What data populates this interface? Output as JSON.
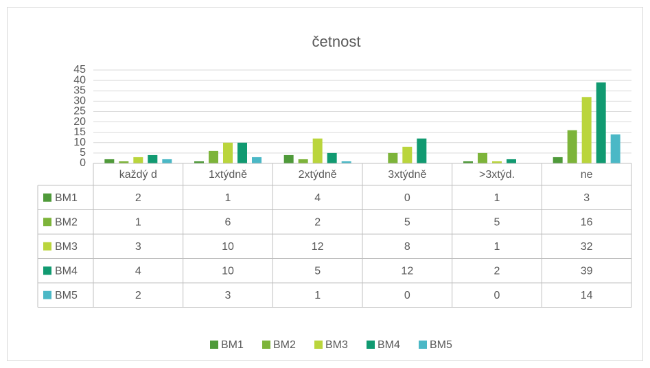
{
  "chart_data": {
    "type": "bar",
    "title": "četnost",
    "categories": [
      "každý d",
      "1xtýdně",
      "2xtýdně",
      "3xtýdně",
      ">3xtýd.",
      "ne"
    ],
    "series": [
      {
        "name": "BM1",
        "color": "#4f9a3a",
        "values": [
          2,
          1,
          4,
          0,
          1,
          3
        ]
      },
      {
        "name": "BM2",
        "color": "#7db43a",
        "values": [
          1,
          6,
          2,
          5,
          5,
          16
        ]
      },
      {
        "name": "BM3",
        "color": "#bad53c",
        "values": [
          3,
          10,
          12,
          8,
          1,
          32
        ]
      },
      {
        "name": "BM4",
        "color": "#119a71",
        "values": [
          4,
          10,
          5,
          12,
          2,
          39
        ]
      },
      {
        "name": "BM5",
        "color": "#4bb8c6",
        "values": [
          2,
          3,
          1,
          0,
          0,
          14
        ]
      }
    ],
    "ylim": [
      0,
      45
    ],
    "yticks": [
      0,
      5,
      10,
      15,
      20,
      25,
      30,
      35,
      40,
      45
    ],
    "grid": true,
    "data_table": true,
    "legend": "bottom"
  }
}
